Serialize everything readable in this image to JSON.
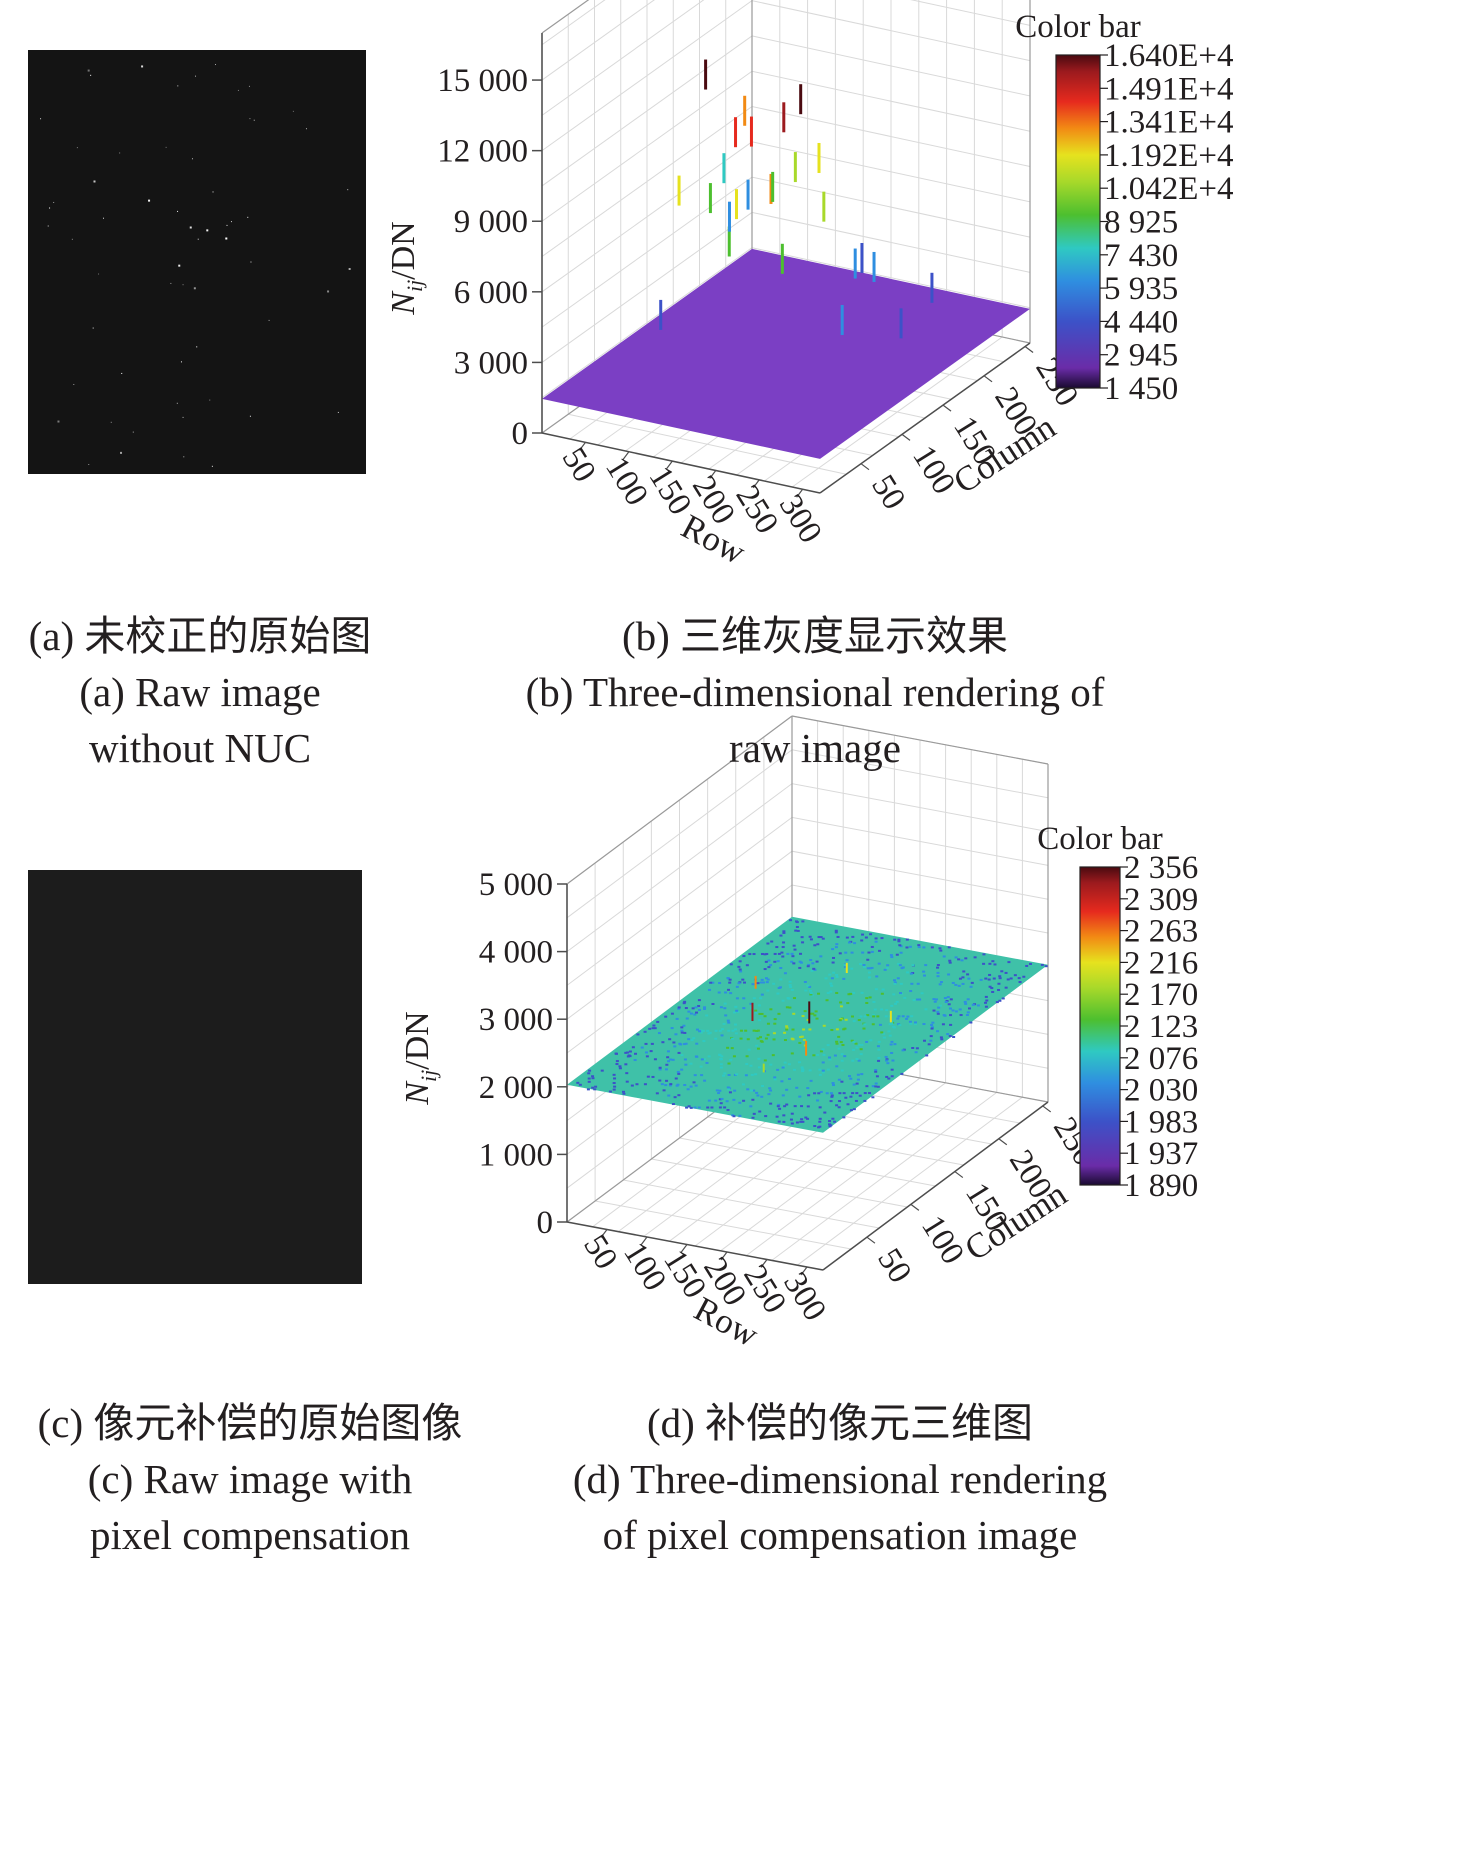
{
  "panels": [
    {
      "id": "a",
      "caption_cn": "(a) 未校正的原始图",
      "caption_en_1": "(a) Raw image",
      "caption_en_2": "without NUC"
    },
    {
      "id": "b",
      "caption_cn": "(b) 三维灰度显示效果",
      "caption_en_1": "(b) Three-dimensional rendering of",
      "caption_en_2": "raw image"
    },
    {
      "id": "c",
      "caption_cn": "(c) 像元补偿的原始图像",
      "caption_en_1": "(c) Raw image with",
      "caption_en_2": "pixel compensation"
    },
    {
      "id": "d",
      "caption_cn": "(d) 补偿的像元三维图",
      "caption_en_1": "(d) Three-dimensional rendering",
      "caption_en_2": "of pixel compensation image"
    }
  ],
  "chart_data": [
    {
      "panel": "b",
      "type": "surface3d",
      "zlabel": "Nij/DN",
      "xlabel": "Row",
      "ylabel": "Column",
      "z_ticks": [
        "0",
        "3 000",
        "6 000",
        "9 000",
        "12 000",
        "15 000"
      ],
      "z_values": [
        0,
        3000,
        6000,
        9000,
        12000,
        15000
      ],
      "zlim": [
        0,
        17000
      ],
      "row_ticks": [
        "50",
        "100",
        "150",
        "200",
        "250",
        "300"
      ],
      "row_values": [
        50,
        100,
        150,
        200,
        250,
        300
      ],
      "col_ticks": [
        "50",
        "100",
        "150",
        "200",
        "250"
      ],
      "col_values": [
        50,
        100,
        150,
        200,
        250
      ],
      "row_range": [
        0,
        320
      ],
      "col_range": [
        0,
        256
      ],
      "base_level": 1450,
      "colorbar_title": "Color bar",
      "colorbar_labels": [
        "1.640E+4",
        "1.491E+4",
        "1.341E+4",
        "1.192E+4",
        "1.042E+4",
        "8 925",
        "7 430",
        "5 935",
        "4 440",
        "2 945",
        "1 450"
      ],
      "spikes": [
        {
          "row": 260,
          "col": 40,
          "value": 15900
        },
        {
          "row": 160,
          "col": 30,
          "value": 16400
        },
        {
          "row": 40,
          "col": 200,
          "value": 15100
        },
        {
          "row": 250,
          "col": 30,
          "value": 15300
        },
        {
          "row": 185,
          "col": 40,
          "value": 13900
        },
        {
          "row": 205,
          "col": 20,
          "value": 11500
        },
        {
          "row": 240,
          "col": 25,
          "value": 12300
        },
        {
          "row": 120,
          "col": 40,
          "value": 10900
        },
        {
          "row": 175,
          "col": 70,
          "value": 13100
        },
        {
          "row": 230,
          "col": 100,
          "value": 9600
        },
        {
          "row": 215,
          "col": 110,
          "value": 11300
        },
        {
          "row": 120,
          "col": 120,
          "value": 12300
        },
        {
          "row": 140,
          "col": 80,
          "value": 7900
        },
        {
          "row": 90,
          "col": 110,
          "value": 8600
        },
        {
          "row": 150,
          "col": 150,
          "value": 9400
        },
        {
          "row": 60,
          "col": 165,
          "value": 6200
        },
        {
          "row": 30,
          "col": 190,
          "value": 7400
        },
        {
          "row": 105,
          "col": 170,
          "value": 7700
        },
        {
          "row": 250,
          "col": 140,
          "value": 6200
        },
        {
          "row": 220,
          "col": 60,
          "value": 8300
        },
        {
          "row": 270,
          "col": 80,
          "value": 5600
        },
        {
          "row": 200,
          "col": 170,
          "value": 5200
        },
        {
          "row": 80,
          "col": 60,
          "value": 4800
        },
        {
          "row": 300,
          "col": 120,
          "value": 4700
        },
        {
          "row": 20,
          "col": 230,
          "value": 5200
        },
        {
          "row": 170,
          "col": 210,
          "value": 4200
        },
        {
          "row": 260,
          "col": 200,
          "value": 3900
        }
      ]
    },
    {
      "panel": "d",
      "type": "surface3d",
      "zlabel": "Nij/DN",
      "xlabel": "Row",
      "ylabel": "Column",
      "z_ticks": [
        "0",
        "1 000",
        "2 000",
        "3 000",
        "4 000",
        "5 000"
      ],
      "z_values": [
        0,
        1000,
        2000,
        3000,
        4000,
        5000
      ],
      "zlim": [
        0,
        5000
      ],
      "row_ticks": [
        "50",
        "100",
        "150",
        "200",
        "250",
        "300"
      ],
      "row_values": [
        50,
        100,
        150,
        200,
        250,
        300
      ],
      "col_ticks": [
        "50",
        "100",
        "150",
        "200",
        "250"
      ],
      "col_values": [
        50,
        100,
        150,
        200,
        250
      ],
      "row_range": [
        0,
        320
      ],
      "col_range": [
        0,
        256
      ],
      "base_level": 2030,
      "colorbar_title": "Color bar",
      "colorbar_labels": [
        "2 356",
        "2 309",
        "2 263",
        "2 216",
        "2 170",
        "2 123",
        "2 076",
        "2 030",
        "1 983",
        "1 937",
        "1 890"
      ],
      "spikes": [
        {
          "row": 160,
          "col": 130,
          "value": 2356
        },
        {
          "row": 100,
          "col": 120,
          "value": 2300
        },
        {
          "row": 200,
          "col": 90,
          "value": 2250
        },
        {
          "row": 60,
          "col": 160,
          "value": 2220
        },
        {
          "row": 240,
          "col": 150,
          "value": 2200
        },
        {
          "row": 130,
          "col": 200,
          "value": 2180
        },
        {
          "row": 180,
          "col": 60,
          "value": 2160
        }
      ]
    }
  ],
  "colors": {
    "axis": "#4d4d4d",
    "grid": "#d9d9d9",
    "image_a_bg": "#141414",
    "image_c_bg": "#1c1c1c",
    "colormap": [
      "#2b0a4a",
      "#6a2ca8",
      "#3c52c8",
      "#2f8ee0",
      "#2fc9c2",
      "#4dbf2f",
      "#a8d92a",
      "#e6e21e",
      "#f28a14",
      "#e62a1e",
      "#9c1a1e",
      "#4a0a10"
    ]
  }
}
